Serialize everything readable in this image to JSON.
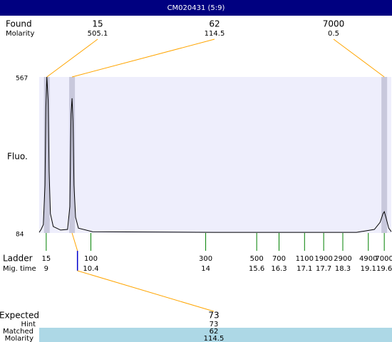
{
  "chart_data": {
    "type": "line",
    "title": "CM020431 (5:9)",
    "y_label": "Fluo.",
    "xlim": [
      8.78,
      19.82
    ],
    "ylim": [
      84,
      567
    ],
    "yticks": [
      567,
      84
    ],
    "color": "#000000",
    "x": [
      8.78,
      8.84,
      8.91,
      8.96,
      8.99,
      9.02,
      9.06,
      9.09,
      9.13,
      9.22,
      9.45,
      9.67,
      9.74,
      9.78,
      9.81,
      9.84,
      9.87,
      9.92,
      10.01,
      10.45,
      14.26,
      18.73,
      19.29,
      19.47,
      19.56,
      19.6,
      19.65,
      19.74,
      19.82
    ],
    "values": [
      86,
      95,
      110,
      232,
      474,
      567,
      496,
      276,
      144,
      104,
      93,
      95,
      166,
      452,
      501,
      430,
      232,
      133,
      99,
      88,
      86,
      86,
      95,
      117,
      144,
      150,
      133,
      99,
      88
    ],
    "found": {
      "label": "Found",
      "molarity_label": "Molarity",
      "peaks": [
        {
          "size": 15,
          "molarity": 505.1,
          "mig_time": 9.02
        },
        {
          "size": 62,
          "molarity": 114.5,
          "mig_time": 9.81
        },
        {
          "size": 7000,
          "molarity": 0.5,
          "mig_time": 19.6
        }
      ]
    },
    "ladder": {
      "label": "Ladder",
      "mig_label": "Mig. time",
      "color": "#008000",
      "sizes": [
        15,
        100,
        300,
        500,
        700,
        1100,
        1900,
        2900,
        4900,
        7000
      ],
      "mig_times": [
        9,
        10.4,
        14,
        15.6,
        16.3,
        17.1,
        17.7,
        18.3,
        19.1,
        19.6
      ]
    },
    "expected": {
      "label": "Expected",
      "value": 73,
      "hint_label": "Hint",
      "hint": 73,
      "matched_label": "Matched",
      "matched": 62,
      "molarity_label": "Molarity",
      "molarity": 114.5,
      "mig_time": 9.98
    }
  }
}
